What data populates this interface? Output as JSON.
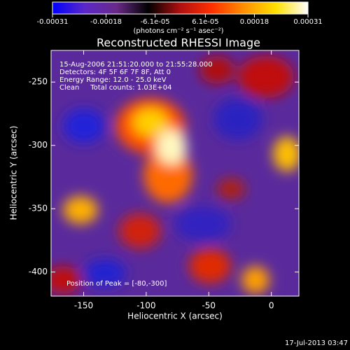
{
  "chart_data": {
    "type": "image",
    "title": "Reconstructed RHESSI Image",
    "x_label": "Heliocentric X (arcsec)",
    "y_label": "Heliocentric Y (arcsec)",
    "xlim": [
      -176,
      22
    ],
    "xticks": [
      -150,
      -100,
      -50,
      0
    ],
    "ylim": [
      -419,
      -225
    ],
    "yticks": [
      -400,
      -350,
      -300,
      -250
    ],
    "annotations": [
      "15-Aug-2006 21:51:20.000 to 21:55:28.000",
      "Detectors: 4F 5F 6F 7F 8F, Att 0",
      "Energy Range: 12.0 - 25.0 keV",
      "Clean     Total counts: 1.03E+04"
    ],
    "peak_label": "Position of Peak = [-80,-300]",
    "colorbar": {
      "label": "(photons cm⁻² s⁻¹ asec⁻²)",
      "lim": [
        -0.00031,
        0.00031
      ],
      "ticks": [
        -0.00031,
        -0.00018,
        {
          "value": -6.1e-05,
          "label": "-6.1e-05"
        },
        {
          "value": 6.1e-05,
          "label": "6.1e-05"
        },
        0.00018,
        0.00031
      ],
      "colormap": [
        "#0000ff",
        "#5a28c8",
        "#6a2a8a",
        "#000000",
        "#b01010",
        "#ff3000",
        "#ff9000",
        "#ffe000",
        "#ffffff"
      ]
    },
    "footer": "17-Jul-2013 03:47"
  }
}
